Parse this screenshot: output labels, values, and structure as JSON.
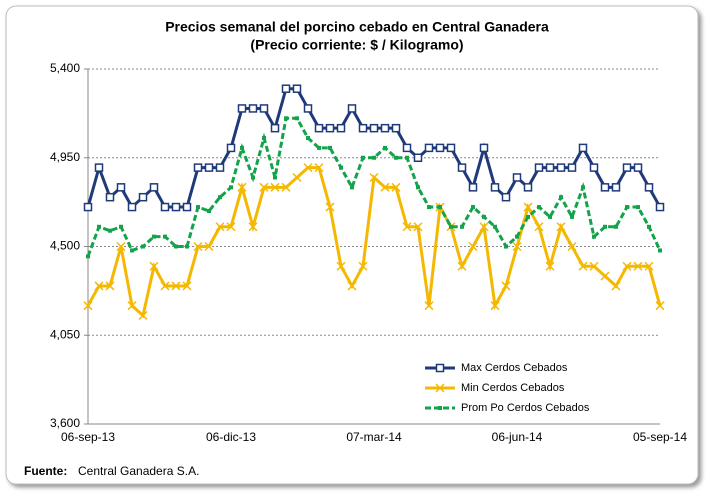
{
  "chart_data": {
    "type": "line",
    "title": "Precios semanal del porcino cebado en Central Ganadera",
    "subtitle": "(Precio corriente: $ / Kilogramo)",
    "source_label": "Fuente:",
    "source": "Central Ganadera S.A.",
    "categories": [
      "06-sep-13",
      null,
      null,
      null,
      null,
      null,
      null,
      null,
      null,
      null,
      null,
      null,
      null,
      "06-dic-13",
      null,
      null,
      null,
      null,
      null,
      null,
      null,
      null,
      null,
      null,
      null,
      null,
      "07-mar-14",
      null,
      null,
      null,
      null,
      null,
      null,
      null,
      null,
      null,
      null,
      null,
      null,
      "06-jun-14",
      null,
      null,
      null,
      null,
      null,
      null,
      null,
      null,
      null,
      null,
      null,
      null,
      "05-sep-14"
    ],
    "series": [
      {
        "name": "Max Cerdos Cebados",
        "color": "#1f3a7a",
        "marker": "square",
        "values": [
          4700,
          4900,
          4750,
          4800,
          4700,
          4750,
          4800,
          4700,
          4700,
          4700,
          4900,
          4900,
          4900,
          5000,
          5200,
          5200,
          5200,
          5100,
          5300,
          5300,
          5200,
          5100,
          5100,
          5100,
          5200,
          5100,
          5100,
          5100,
          5100,
          5000,
          4950,
          5000,
          5000,
          5000,
          4900,
          4800,
          5000,
          4800,
          4750,
          4850,
          4800,
          4900,
          4900,
          4900,
          4900,
          5000,
          4900,
          4800,
          4800,
          4900,
          4900,
          4800,
          4700
        ]
      },
      {
        "name": "Min Cerdos Cebados",
        "color": "#f5b800",
        "marker": "x",
        "values": [
          4200,
          4300,
          4300,
          4500,
          4200,
          4150,
          4400,
          4300,
          4300,
          4300,
          4500,
          4500,
          4600,
          4600,
          4800,
          4600,
          4800,
          4800,
          4800,
          4850,
          4900,
          4900,
          4700,
          4400,
          4300,
          4400,
          4850,
          4800,
          4800,
          4600,
          4600,
          4200,
          4700,
          4600,
          4400,
          4500,
          4600,
          4200,
          4300,
          4500,
          4700,
          4600,
          4400,
          4600,
          4500,
          4400,
          4400,
          4350,
          4300,
          4400,
          4400,
          4400,
          4200
        ]
      },
      {
        "name": "Prom Po Cerdos Cebados",
        "color": "#13a34a",
        "marker": "dot",
        "values": [
          4450,
          4600,
          4580,
          4600,
          4480,
          4500,
          4550,
          4550,
          4500,
          4500,
          4700,
          4680,
          4750,
          4800,
          5000,
          4850,
          5050,
          4850,
          5150,
          5150,
          5050,
          5000,
          5000,
          4900,
          4800,
          4950,
          4950,
          5000,
          4950,
          4950,
          4800,
          4700,
          4700,
          4600,
          4600,
          4700,
          4650,
          4600,
          4500,
          4550,
          4650,
          4700,
          4650,
          4750,
          4650,
          4800,
          4550,
          4600,
          4600,
          4700,
          4700,
          4600,
          4480
        ]
      }
    ],
    "ylim": [
      3600,
      5400
    ],
    "yticks": [
      {
        "value": 3600,
        "label": "3,600"
      },
      {
        "value": 4050,
        "label": "4,050"
      },
      {
        "value": 4500,
        "label": "4,500"
      },
      {
        "value": 4950,
        "label": "4,950"
      },
      {
        "value": 5400,
        "label": "5,400"
      }
    ],
    "grid": true,
    "legend": "bottom-right"
  }
}
